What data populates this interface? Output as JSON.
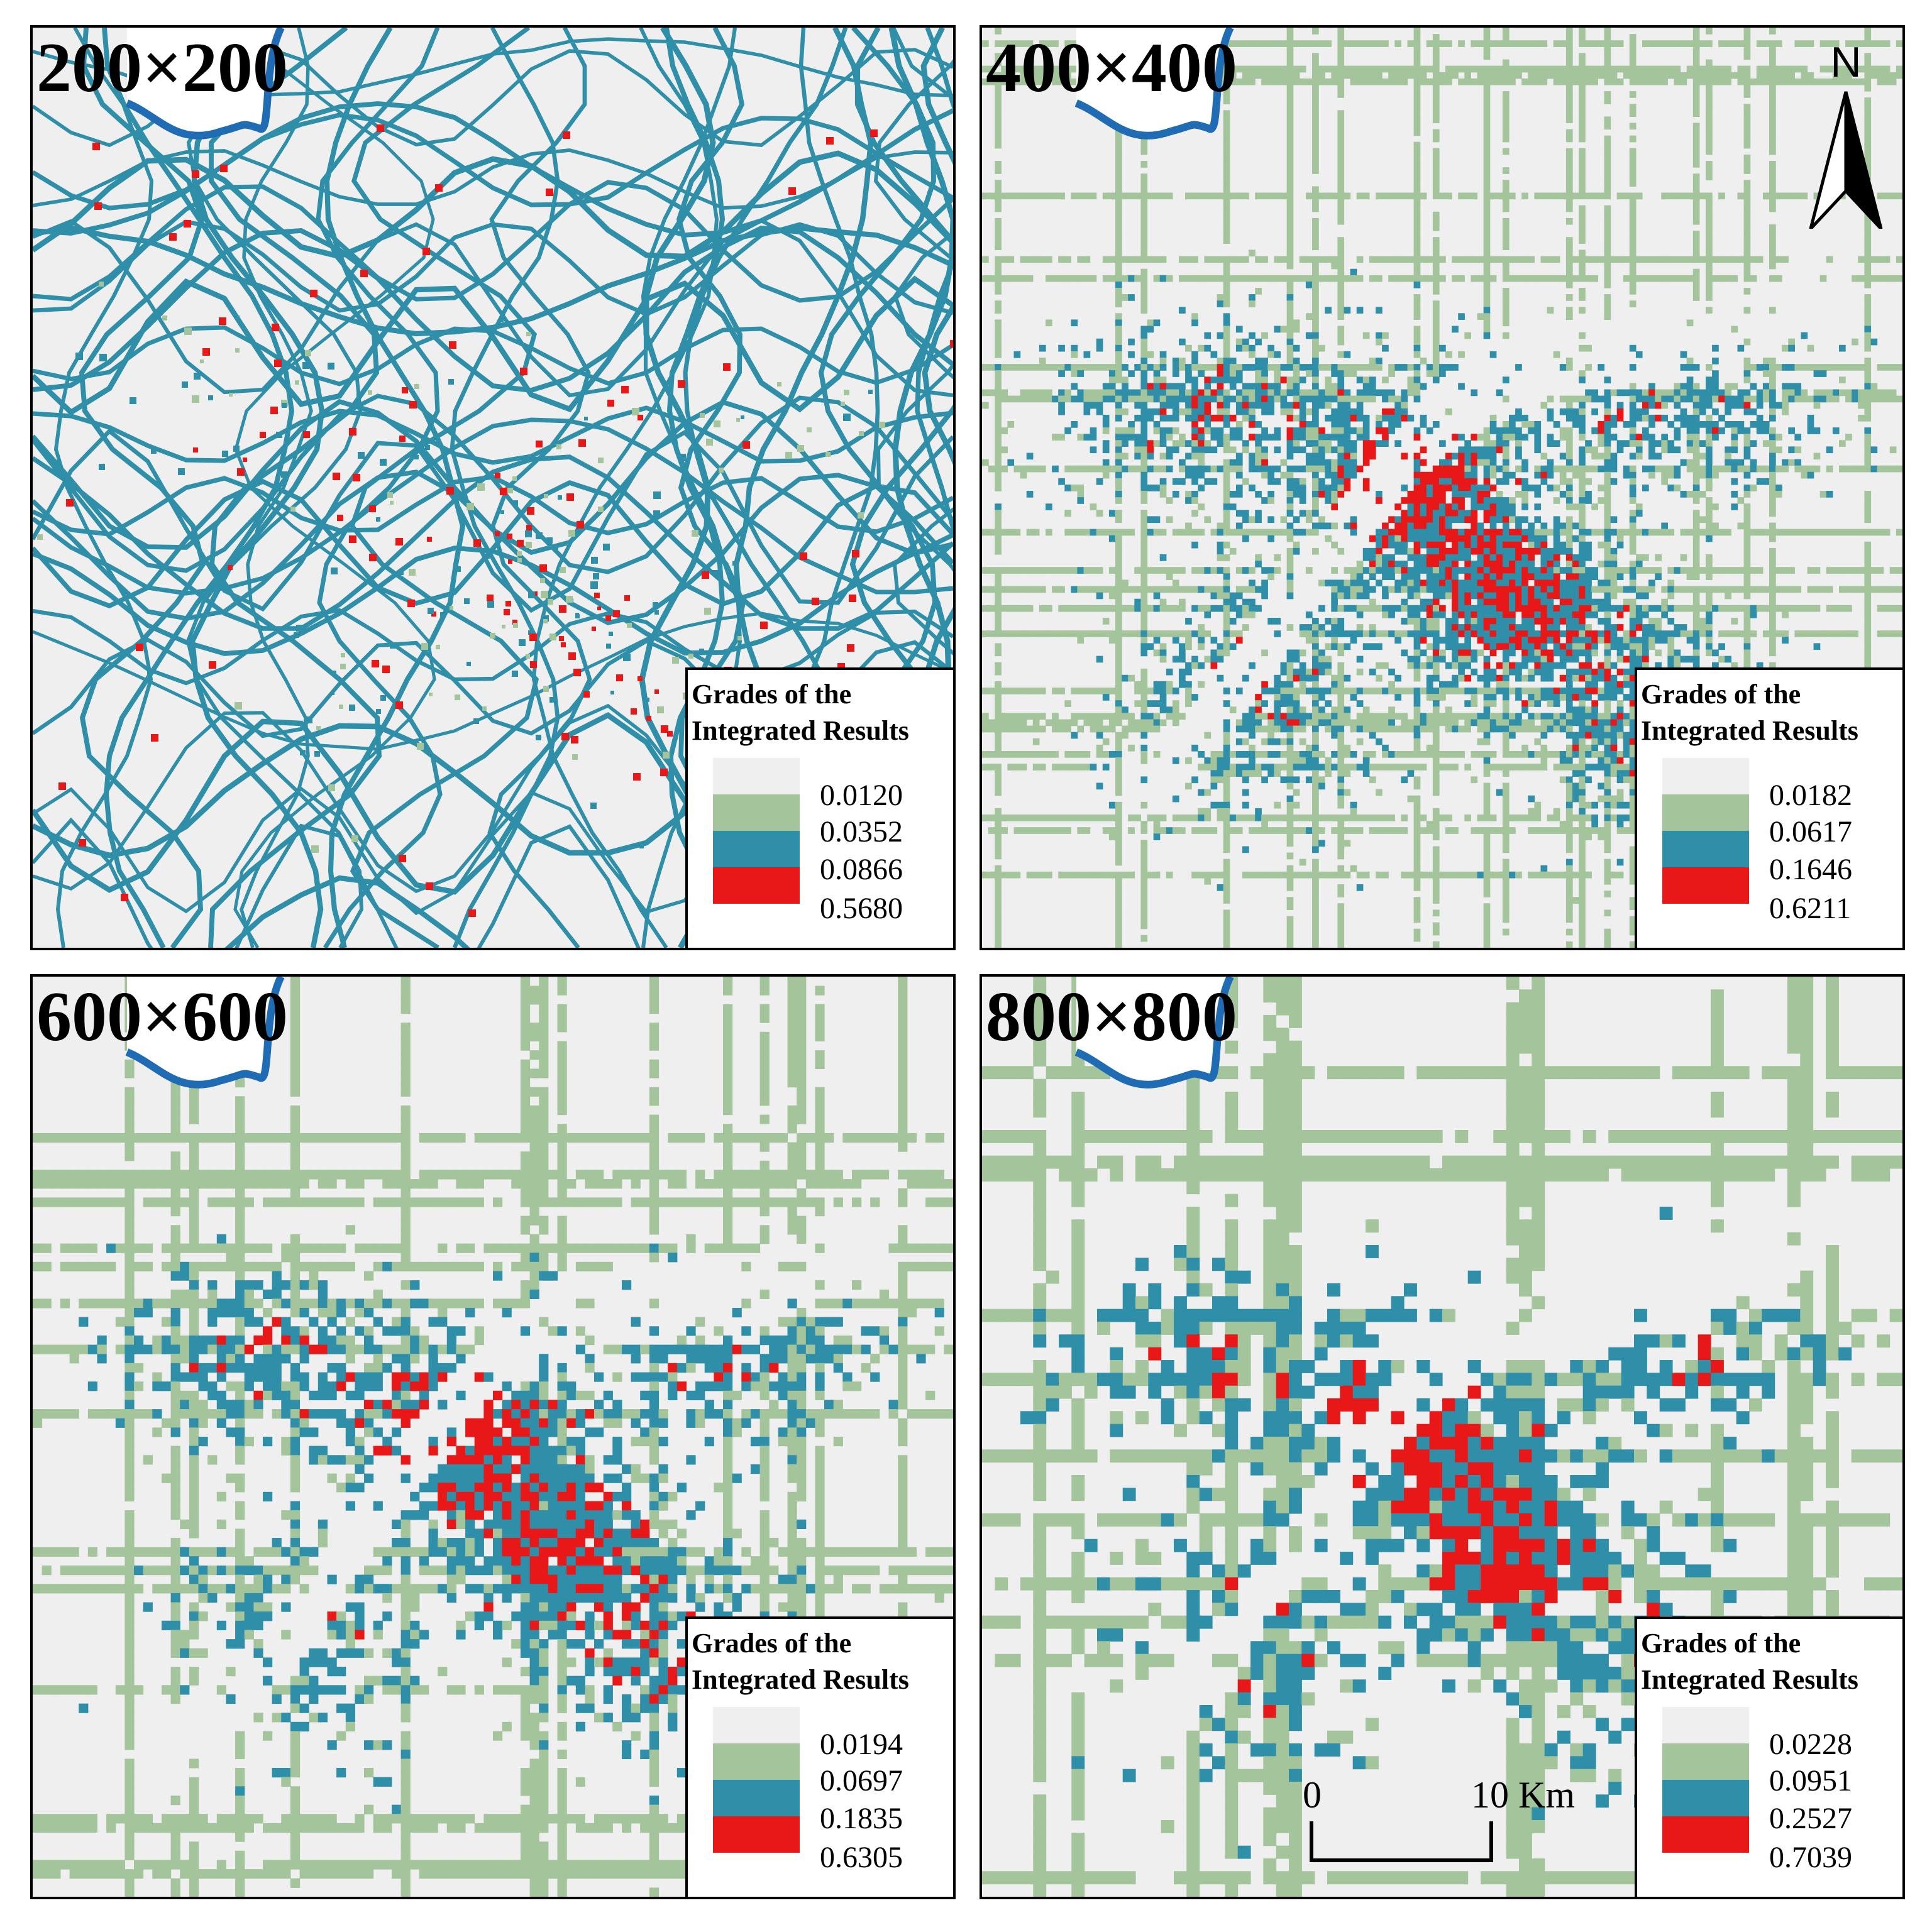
{
  "legend_title_line1": "Grades of the",
  "legend_title_line2": "Integrated Results",
  "grade_colors": [
    "#efefef",
    "#a4c49c",
    "#2f8ea8",
    "#e81818"
  ],
  "river_color": "#1f6cb4",
  "panels": [
    {
      "title": "200×200",
      "breaks": [
        "0.0120",
        "0.0352",
        "0.0866",
        "0.5680"
      ],
      "style": "fine-lines"
    },
    {
      "title": "400×400",
      "breaks": [
        "0.0182",
        "0.0617",
        "0.1646",
        "0.6211"
      ],
      "style": "medium-grid"
    },
    {
      "title": "600×600",
      "breaks": [
        "0.0194",
        "0.0697",
        "0.1835",
        "0.6305"
      ],
      "style": "coarse-grid"
    },
    {
      "title": "800×800",
      "breaks": [
        "0.0228",
        "0.0951",
        "0.2527",
        "0.7039"
      ],
      "style": "coarsest-grid"
    }
  ],
  "north_arrow": {
    "label": "N",
    "icon": "north-arrow-icon"
  },
  "scale_bar": {
    "start_label": "0",
    "end_label": "10 Km"
  }
}
